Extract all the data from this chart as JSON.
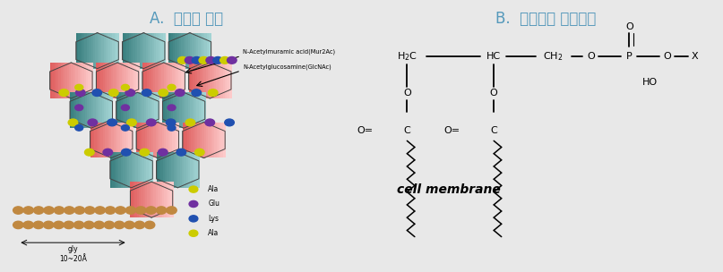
{
  "title_A": "A.  세포벽 구조",
  "title_B": "B.  세포막의 화학구조",
  "bg_color": "#e8e8e8",
  "panel_bg": "#ffffff",
  "border_color": "#999999",
  "label_muramic": "N-Acetylmuramic acid(Mur2Ac)",
  "label_glucosamine": "N-Acetylglucosamine(GlcNAc)",
  "label_ala": "Ala",
  "label_glu": "Glu",
  "label_lys": "Lys",
  "label_ala2": "Ala",
  "label_gly": "gly\n10~20",
  "label_cell_membrane": "cell membrane",
  "teal_color": "#7ab8b8",
  "pink_color": "#f08080",
  "yellow_color": "#cccc00",
  "purple_color": "#7030a0",
  "blue_color": "#2050b0",
  "brown_color": "#c08840"
}
